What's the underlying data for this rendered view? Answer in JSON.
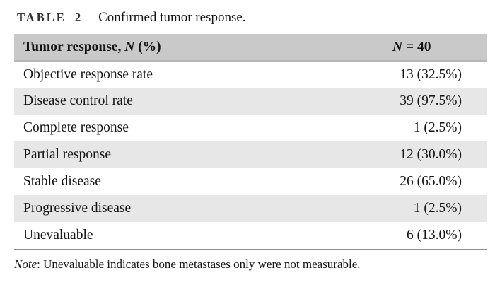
{
  "title": {
    "label": "TABLE 2",
    "text": "Confirmed tumor response."
  },
  "table": {
    "header": {
      "col1_prefix": "Tumor response, ",
      "col1_n": "N",
      "col1_suffix": " (%)",
      "col2_n": "N",
      "col2_rest": " = 40"
    },
    "rows": [
      {
        "label": "Objective response rate",
        "value": "13 (32.5%)"
      },
      {
        "label": "Disease control rate",
        "value": "39 (97.5%)"
      },
      {
        "label": "Complete response",
        "value": "1 (2.5%)"
      },
      {
        "label": "Partial response",
        "value": "12 (30.0%)"
      },
      {
        "label": "Stable disease",
        "value": "26 (65.0%)"
      },
      {
        "label": "Progressive disease",
        "value": "1 (2.5%)"
      },
      {
        "label": "Unevaluable",
        "value": "6 (13.0%)"
      }
    ]
  },
  "note": {
    "label": "Note",
    "text": ": Unevaluable indicates bone metastases only were not measurable."
  },
  "colors": {
    "header_bg": "#c9c9c9",
    "stripe_bg": "#e7e7e7",
    "rule": "#8f8f8f",
    "text": "#141414"
  }
}
